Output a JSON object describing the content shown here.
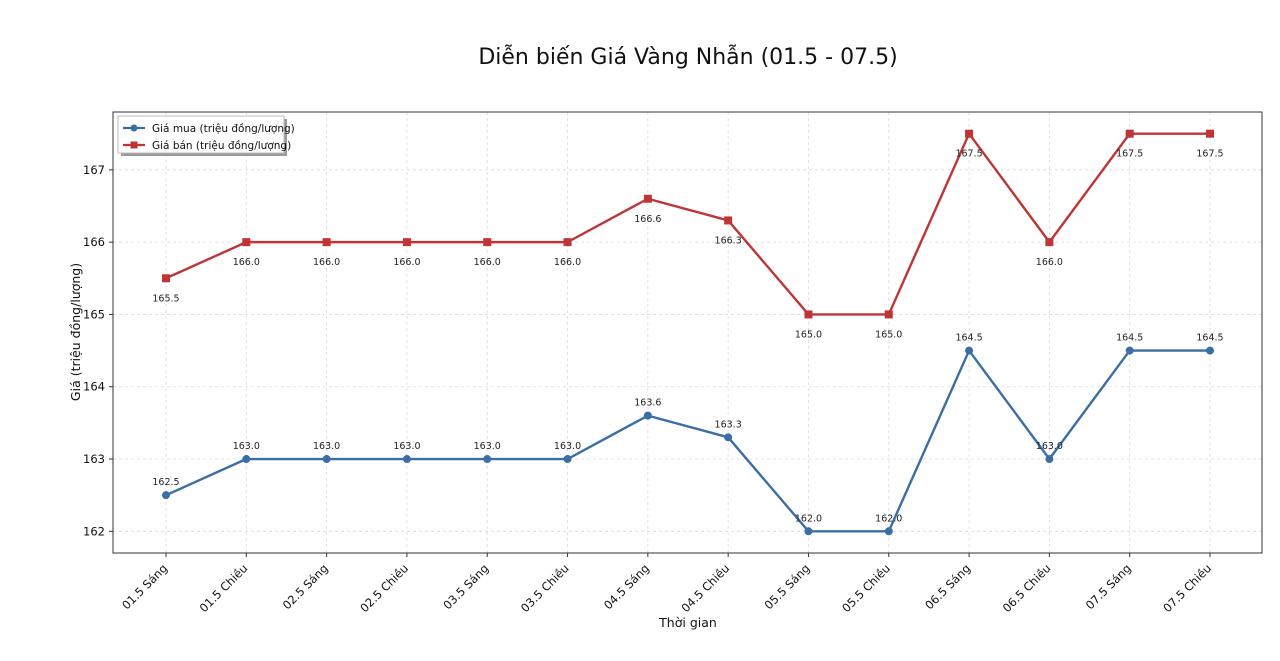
{
  "chart_data": {
    "type": "line",
    "title": "Diễn biến Giá Vàng Nhẫn (01.5 - 07.5)",
    "xlabel": "Thời gian",
    "ylabel": "Giá (triệu đồng/lượng)",
    "categories": [
      "01.5 Sáng",
      "01.5 Chiều",
      "02.5 Sáng",
      "02.5 Chiều",
      "03.5 Sáng",
      "03.5 Chiều",
      "04.5 Sáng",
      "04.5 Chiều",
      "05.5 Sáng",
      "05.5 Chiều",
      "06.5 Sáng",
      "06.5 Chiều",
      "07.5 Sáng",
      "07.5 Chiều"
    ],
    "yticks": [
      162,
      163,
      164,
      165,
      166,
      167
    ],
    "ylim": [
      161.7,
      167.8
    ],
    "grid": true,
    "legend_position": "top-left",
    "series": [
      {
        "name": "Giá mua (triệu đồng/lượng)",
        "color": "#3a6ea5",
        "marker": "circle",
        "label_position": "above",
        "values": [
          162.5,
          163.0,
          163.0,
          163.0,
          163.0,
          163.0,
          163.6,
          163.3,
          162.0,
          162.0,
          164.5,
          163.0,
          164.5,
          164.5
        ],
        "labels": [
          "162.5",
          "163.0",
          "163.0",
          "163.0",
          "163.0",
          "163.0",
          "163.6",
          "163.3",
          "162.0",
          "162.0",
          "164.5",
          "163.0",
          "164.5",
          "164.5"
        ]
      },
      {
        "name": "Giá bán (triệu đồng/lượng)",
        "color": "#bf3535",
        "marker": "square",
        "label_position": "below",
        "values": [
          165.5,
          166.0,
          166.0,
          166.0,
          166.0,
          166.0,
          166.6,
          166.3,
          165.0,
          165.0,
          167.5,
          166.0,
          167.5,
          167.5
        ],
        "labels": [
          "165.5",
          "166.0",
          "166.0",
          "166.0",
          "166.0",
          "166.0",
          "166.6",
          "166.3",
          "165.0",
          "165.0",
          "167.5",
          "166.0",
          "167.5",
          "167.5"
        ]
      }
    ]
  }
}
